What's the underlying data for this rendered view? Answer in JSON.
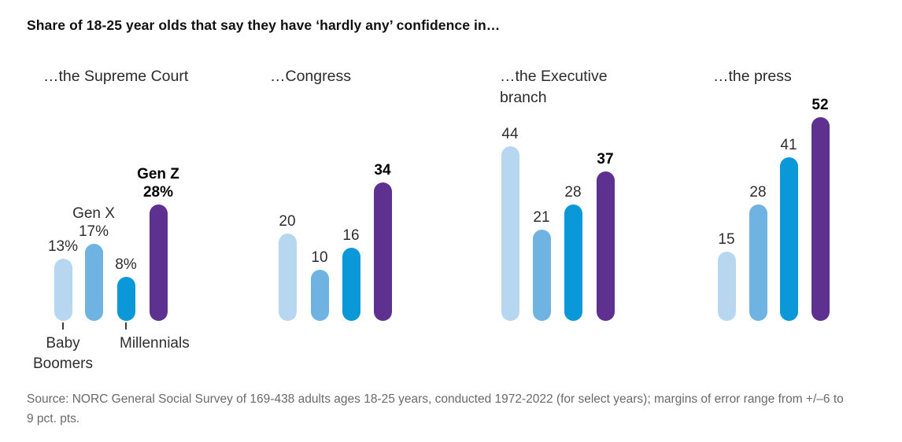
{
  "title": "Share of 18-25 year olds that say they have ‘hardly any’ confidence in…",
  "source_note": "Source: NORC General Social Survey of 169-438 adults ages 18-25 years, conducted 1972-2022 (for select years); margins of error range from +/–6 to 9 pct. pts.",
  "colors": {
    "baby_boomers": "#b7d7f1",
    "gen_x": "#6fb3e3",
    "millennials": "#0a98d9",
    "gen_z": "#5e3190",
    "label_text": "#2e2e2e",
    "emphasis_text": "#000000",
    "source_text": "#6a6a6a"
  },
  "chart_data": {
    "type": "bar",
    "unit": "percent",
    "grid": false,
    "legend_position": "annotated-on-first-panel",
    "ylim": [
      0,
      55
    ],
    "categories": [
      "Baby Boomers",
      "Gen X",
      "Millennials",
      "Gen Z"
    ],
    "series_colors": [
      "#b7d7f1",
      "#6fb3e3",
      "#0a98d9",
      "#5e3190"
    ],
    "emphasized_category": "Gen Z",
    "panels": [
      {
        "title": "…the Supreme Court",
        "values": [
          13,
          17,
          8,
          28
        ],
        "value_labels": [
          "13%",
          "17%",
          "8%",
          "28%"
        ],
        "bar_name_labels": [
          null,
          "Gen X",
          null,
          "Gen Z"
        ],
        "axis_labels": [
          {
            "category_index": 0,
            "text": "Baby Boomers"
          },
          {
            "category_index": 2,
            "text": "Millennials"
          }
        ]
      },
      {
        "title": "…Congress",
        "values": [
          20,
          10,
          16,
          34
        ],
        "value_labels": [
          "20",
          "10",
          "16",
          "34"
        ]
      },
      {
        "title": "…the Executive branch",
        "values": [
          44,
          21,
          28,
          37
        ],
        "value_labels": [
          "44",
          "21",
          "28",
          "37"
        ]
      },
      {
        "title": "…the press",
        "values": [
          15,
          28,
          41,
          52
        ],
        "value_labels": [
          "15",
          "28",
          "41",
          "52"
        ]
      }
    ]
  }
}
